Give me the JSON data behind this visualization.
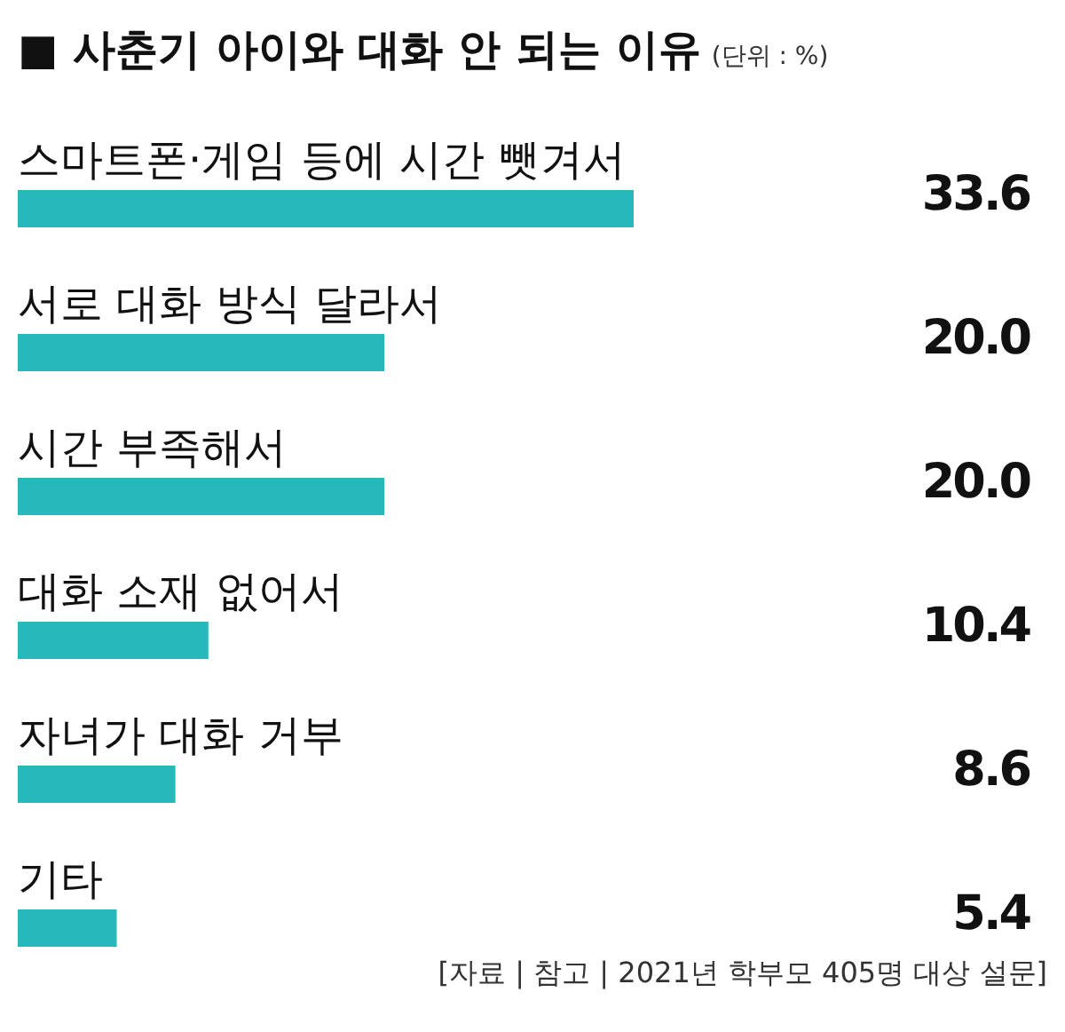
{
  "chart_data": {
    "type": "bar",
    "orientation": "horizontal",
    "title": "■ 사춘기 아이와 대화 안 되는 이유",
    "subtitle": "(단위 : %)",
    "categories": [
      "스마트폰·게임 등에 시간 뺏겨서",
      "서로 대화 방식 달라서",
      "시간 부족해서",
      "대화 소재 없어서",
      "자녀가 대화 거부",
      "기타"
    ],
    "values": [
      33.6,
      20.0,
      20.0,
      10.4,
      8.6,
      5.4
    ],
    "value_labels": [
      "33.6",
      "20.0",
      "20.0",
      "10.4",
      "8.6",
      "5.4"
    ],
    "color": "#26b8bb",
    "xlim": [
      0,
      33.6
    ],
    "annotations": [
      "[자료 | 참고 | 2021년 학부모 405명 대상 설문]"
    ]
  }
}
